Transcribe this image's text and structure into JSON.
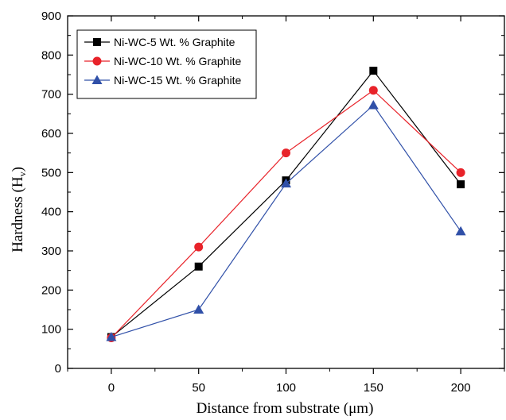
{
  "chart_data": {
    "type": "line",
    "title": "",
    "xlabel": "Distance from substrate (μm)",
    "ylabel_main": "Hardness (H",
    "ylabel_sub": "v",
    "ylabel_close": ")",
    "xlim": [
      -25,
      225
    ],
    "ylim": [
      0,
      900
    ],
    "xticks": [
      0,
      50,
      100,
      150,
      200
    ],
    "yticks": [
      0,
      100,
      200,
      300,
      400,
      500,
      600,
      700,
      800,
      900
    ],
    "x": [
      0,
      50,
      100,
      150,
      200
    ],
    "legend_position": "top-left",
    "grid": false,
    "series": [
      {
        "name": "Ni-WC-5 Wt. % Graphite",
        "values": [
          80,
          260,
          480,
          760,
          470
        ],
        "color": "#000000",
        "marker": "square"
      },
      {
        "name": "Ni-WC-10 Wt. % Graphite",
        "values": [
          78,
          310,
          550,
          710,
          500
        ],
        "color": "#e8232a",
        "marker": "circle"
      },
      {
        "name": "Ni-WC-15 Wt. % Graphite",
        "values": [
          80,
          150,
          472,
          672,
          350
        ],
        "color": "#3050a8",
        "marker": "triangle"
      }
    ]
  }
}
